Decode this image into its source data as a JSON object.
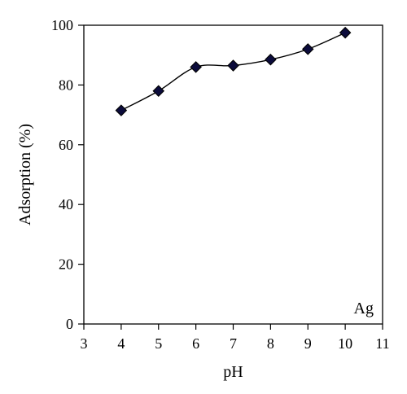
{
  "chart_data": {
    "type": "line",
    "title": "",
    "xlabel": "pH",
    "ylabel": "Adsorption (%)",
    "annotation": "Ag",
    "xlim": [
      3,
      11
    ],
    "ylim": [
      0,
      100
    ],
    "xticks": [
      3,
      4,
      5,
      6,
      7,
      8,
      9,
      10,
      11
    ],
    "yticks": [
      0,
      20,
      40,
      60,
      80,
      100
    ],
    "grid": false,
    "legend": "none",
    "marker": "diamond",
    "marker_color": "#0b0b3b",
    "line_color": "#000000",
    "series": [
      {
        "x": [
          4,
          5,
          6,
          7,
          8,
          9,
          10
        ],
        "y": [
          71.5,
          78,
          86,
          86.5,
          88.5,
          92,
          97.5
        ]
      }
    ]
  }
}
